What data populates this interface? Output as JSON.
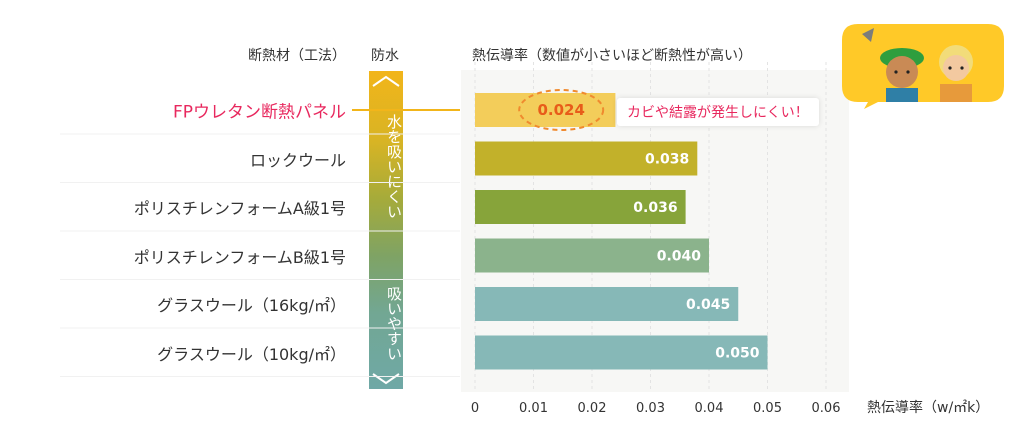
{
  "header": {
    "material_label": "断熱材（工法）",
    "water_label": "防水",
    "chart_label": "熱伝導率（数値が小さいほど断熱性が高い）"
  },
  "water_scale": {
    "top_text": "水を吸いにくい",
    "bottom_text": "吸いやすい"
  },
  "callout": "カビや結露が発生しにくい！",
  "colors": {
    "highlight_text": "#e8285e",
    "callout_ring": "#f08a2e",
    "gridline": "#e3e3e3",
    "bar_label": "#ffffff",
    "bubble": "#ffc928"
  },
  "chart_data": {
    "type": "bar",
    "orientation": "horizontal",
    "categories": [
      "FPウレタン断熱パネル",
      "ロックウール",
      "ポリスチレンフォームA級1号",
      "ポリスチレンフォームB級1号",
      "グラスウール（16kg/㎡）",
      "グラスウール（10kg/㎡）"
    ],
    "values": [
      0.024,
      0.038,
      0.036,
      0.04,
      0.045,
      0.05
    ],
    "value_labels": [
      "0.024",
      "0.038",
      "0.036",
      "0.040",
      "0.045",
      "0.050"
    ],
    "bar_colors": [
      "#f3cd5a",
      "#c2b12a",
      "#87a43a",
      "#8bb38c",
      "#86b8b7",
      "#86b8b7"
    ],
    "xlim": [
      0,
      0.06
    ],
    "ticks": [
      0,
      0.01,
      0.02,
      0.03,
      0.04,
      0.05,
      0.06
    ],
    "tick_labels": [
      "0",
      "0.01",
      "0.02",
      "0.03",
      "0.04",
      "0.05",
      "0.06"
    ],
    "xlabel": "熱伝導率（w/㎡k）",
    "grid": "vertical-dashed",
    "highlight_index": 0
  }
}
